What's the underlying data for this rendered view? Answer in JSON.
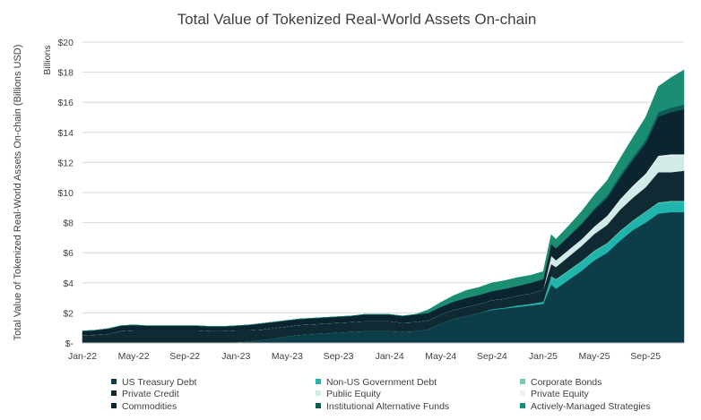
{
  "chart_data": {
    "type": "area",
    "stacked": true,
    "title": "Total Value of Tokenized Real-World Assets On-chain",
    "ylabel": "Total Value of Tokenized Real-World Assets On-chain (Billions USD)",
    "yunit_label": "Billions",
    "xlabel": "",
    "ylim": [
      0,
      20
    ],
    "y_ticks": [
      0,
      2,
      4,
      6,
      8,
      10,
      12,
      14,
      16,
      18,
      20
    ],
    "y_tick_labels": [
      "$-",
      "$2",
      "$4",
      "$6",
      "$8",
      "$10",
      "$12",
      "$14",
      "$16",
      "$18",
      "$20"
    ],
    "x_range": [
      "2022-01",
      "2025-12"
    ],
    "x_ticks": [
      "2022-01",
      "2022-05",
      "2022-09",
      "2023-01",
      "2023-05",
      "2023-09",
      "2024-01",
      "2024-05",
      "2024-09",
      "2025-01",
      "2025-05",
      "2025-09"
    ],
    "x_tick_labels": [
      "Jan-22",
      "May-22",
      "Sep-22",
      "Jan-23",
      "May-23",
      "Sep-23",
      "Jan-24",
      "May-24",
      "Sep-24",
      "Jan-25",
      "May-25",
      "Sep-25"
    ],
    "grid": "horizontal",
    "legend_position": "bottom",
    "x": [
      "2022-01-01",
      "2022-02-01",
      "2022-03-01",
      "2022-04-01",
      "2022-05-01",
      "2022-06-01",
      "2022-07-01",
      "2022-08-01",
      "2022-09-01",
      "2022-10-01",
      "2022-11-01",
      "2022-12-01",
      "2023-01-01",
      "2023-02-01",
      "2023-03-01",
      "2023-04-01",
      "2023-05-01",
      "2023-06-01",
      "2023-07-01",
      "2023-08-01",
      "2023-09-01",
      "2023-10-01",
      "2023-11-01",
      "2023-12-01",
      "2024-01-01",
      "2024-02-01",
      "2024-03-01",
      "2024-04-01",
      "2024-05-01",
      "2024-06-01",
      "2024-07-01",
      "2024-08-01",
      "2024-09-01",
      "2024-10-01",
      "2024-11-01",
      "2024-12-01",
      "2025-01-01",
      "2025-01-20",
      "2025-02-01",
      "2025-03-01",
      "2025-04-01",
      "2025-05-01",
      "2025-06-01",
      "2025-07-01",
      "2025-08-01",
      "2025-09-01",
      "2025-10-01",
      "2025-11-01",
      "2025-12-01"
    ],
    "series": [
      {
        "name": "US Treasury Debt",
        "color": "#0e3d4a",
        "values": [
          0,
          0,
          0,
          0,
          0,
          0,
          0,
          0,
          0,
          0,
          0,
          0,
          0.05,
          0.1,
          0.2,
          0.3,
          0.45,
          0.55,
          0.6,
          0.65,
          0.7,
          0.75,
          0.8,
          0.8,
          0.8,
          0.75,
          0.8,
          0.9,
          1.3,
          1.6,
          1.8,
          2.0,
          2.2,
          2.3,
          2.4,
          2.5,
          2.6,
          3.9,
          3.6,
          4.2,
          4.8,
          5.5,
          6.0,
          6.8,
          7.5,
          8.0,
          8.6,
          8.7,
          8.7
        ]
      },
      {
        "name": "Non-US Government Debt",
        "color": "#1fb5ad",
        "values": [
          0,
          0,
          0,
          0,
          0,
          0,
          0,
          0,
          0,
          0,
          0,
          0,
          0,
          0,
          0,
          0,
          0,
          0,
          0,
          0,
          0,
          0,
          0,
          0,
          0,
          0,
          0,
          0,
          0,
          0,
          0,
          0,
          0.05,
          0.05,
          0.1,
          0.1,
          0.15,
          0.5,
          0.6,
          0.6,
          0.6,
          0.6,
          0.6,
          0.6,
          0.6,
          0.7,
          0.7,
          0.7,
          0.7
        ]
      },
      {
        "name": "Corporate Bonds",
        "color": "#7cc9a8",
        "values": [
          0,
          0,
          0,
          0,
          0,
          0,
          0,
          0,
          0,
          0,
          0,
          0,
          0,
          0,
          0,
          0,
          0,
          0,
          0,
          0,
          0,
          0,
          0,
          0,
          0,
          0,
          0,
          0,
          0,
          0,
          0,
          0,
          0,
          0,
          0,
          0,
          0,
          0.05,
          0.05,
          0.05,
          0.05,
          0.05,
          0.05,
          0.05,
          0.05,
          0.05,
          0.05,
          0.05,
          0.05
        ]
      },
      {
        "name": "Private Credit",
        "color": "#102a33",
        "values": [
          0.5,
          0.55,
          0.6,
          0.8,
          0.85,
          0.85,
          0.85,
          0.85,
          0.85,
          0.85,
          0.8,
          0.8,
          0.8,
          0.75,
          0.7,
          0.7,
          0.65,
          0.65,
          0.65,
          0.65,
          0.65,
          0.65,
          0.65,
          0.65,
          0.65,
          0.6,
          0.6,
          0.6,
          0.6,
          0.6,
          0.6,
          0.6,
          0.6,
          0.6,
          0.65,
          0.7,
          0.8,
          0.8,
          0.8,
          0.9,
          1.0,
          1.1,
          1.2,
          1.4,
          1.5,
          1.6,
          2.0,
          1.9,
          2.0
        ]
      },
      {
        "name": "Public Equity",
        "color": "#d0ebe8",
        "values": [
          0,
          0,
          0,
          0,
          0,
          0,
          0,
          0,
          0,
          0,
          0,
          0,
          0,
          0,
          0,
          0,
          0,
          0,
          0,
          0,
          0,
          0,
          0,
          0,
          0,
          0,
          0,
          0,
          0,
          0,
          0,
          0,
          0,
          0,
          0,
          0,
          0,
          0.5,
          0.4,
          0.4,
          0.4,
          0.4,
          0.5,
          0.6,
          0.7,
          0.8,
          1.0,
          1.1,
          1.0
        ]
      },
      {
        "name": "Private Equity",
        "color": "#eef0f0",
        "values": [
          0,
          0,
          0,
          0,
          0,
          0,
          0,
          0,
          0,
          0,
          0,
          0,
          0,
          0,
          0,
          0,
          0,
          0,
          0,
          0,
          0,
          0,
          0,
          0,
          0,
          0,
          0,
          0,
          0,
          0,
          0,
          0,
          0,
          0,
          0,
          0,
          0,
          0.05,
          0.05,
          0.05,
          0.05,
          0.1,
          0.1,
          0.1,
          0.1,
          0.1,
          0.1,
          0.1,
          0.1
        ]
      },
      {
        "name": "Commodities",
        "color": "#0a2530",
        "values": [
          0.3,
          0.3,
          0.35,
          0.35,
          0.35,
          0.3,
          0.3,
          0.3,
          0.3,
          0.3,
          0.3,
          0.3,
          0.3,
          0.35,
          0.4,
          0.4,
          0.4,
          0.4,
          0.4,
          0.4,
          0.4,
          0.4,
          0.45,
          0.45,
          0.45,
          0.45,
          0.5,
          0.5,
          0.5,
          0.55,
          0.6,
          0.6,
          0.6,
          0.65,
          0.65,
          0.7,
          0.7,
          0.8,
          0.8,
          0.9,
          1.0,
          1.1,
          1.2,
          1.4,
          1.7,
          2.0,
          2.6,
          2.8,
          3.0
        ]
      },
      {
        "name": "Institutional Alternative Funds",
        "color": "#0f5c57",
        "values": [
          0,
          0,
          0,
          0,
          0,
          0,
          0,
          0,
          0,
          0,
          0,
          0,
          0,
          0,
          0,
          0,
          0,
          0,
          0,
          0,
          0,
          0,
          0,
          0,
          0,
          0,
          0,
          0,
          0,
          0,
          0,
          0,
          0,
          0,
          0,
          0,
          0,
          0,
          0,
          0,
          0.05,
          0.1,
          0.15,
          0.2,
          0.2,
          0.25,
          0.3,
          0.3,
          0.3
        ]
      },
      {
        "name": "Actively-Managed Strategies",
        "color": "#1b8d72",
        "values": [
          0,
          0,
          0,
          0,
          0,
          0,
          0,
          0,
          0,
          0,
          0,
          0,
          0,
          0,
          0,
          0,
          0,
          0,
          0,
          0,
          0,
          0,
          0,
          0,
          0,
          0,
          0,
          0.2,
          0.3,
          0.4,
          0.5,
          0.5,
          0.55,
          0.55,
          0.55,
          0.5,
          0.5,
          0.6,
          0.6,
          0.7,
          0.8,
          0.9,
          1.0,
          1.1,
          1.3,
          1.5,
          1.7,
          2.0,
          2.3
        ]
      }
    ]
  }
}
